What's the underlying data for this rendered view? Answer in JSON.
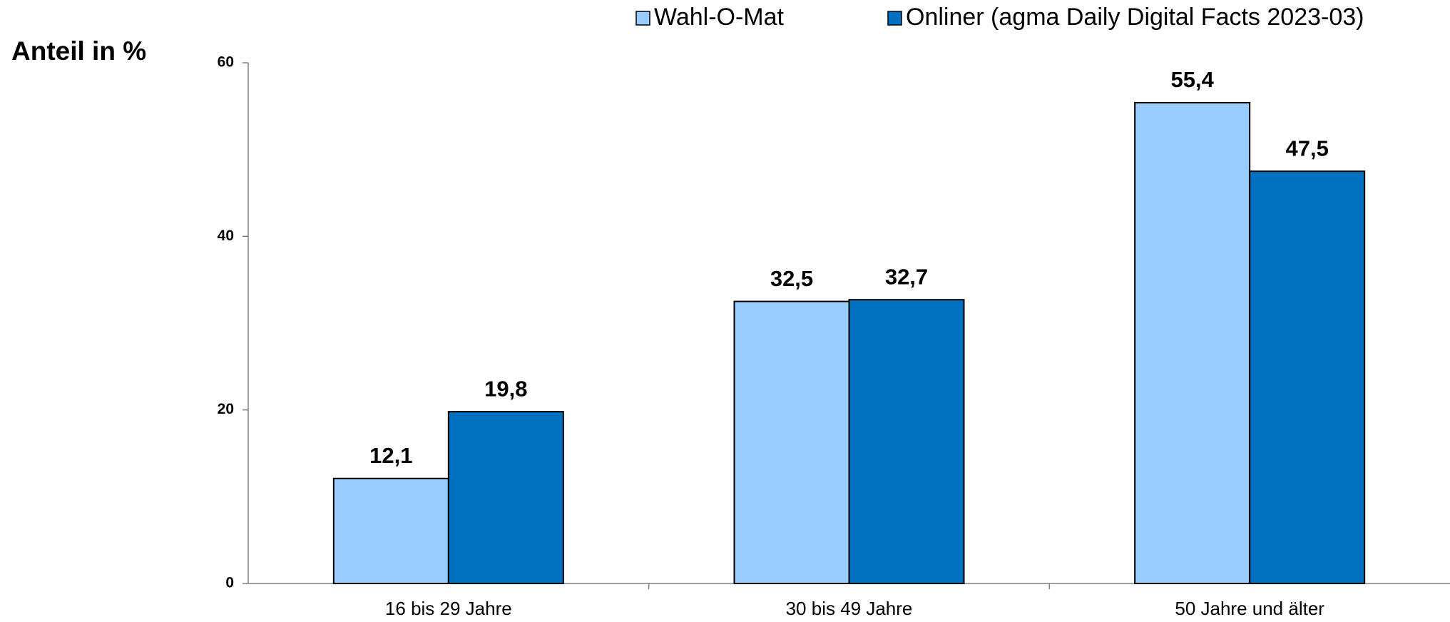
{
  "chart_data": {
    "type": "bar",
    "y_axis_label": "Anteil in %",
    "categories": [
      "16 bis 29 Jahre",
      "30 bis 49 Jahre",
      "50 Jahre und älter"
    ],
    "series": [
      {
        "name": "Wahl-O-Mat",
        "color": "#99ccff",
        "values": [
          12.1,
          32.5,
          55.4
        ],
        "value_labels": [
          "12,1",
          "32,5",
          "55,4"
        ]
      },
      {
        "name": "Onliner (agma Daily Digital Facts 2023-03)",
        "color": "#0070c0",
        "values": [
          19.8,
          32.7,
          47.5
        ],
        "value_labels": [
          "19,8",
          "32,7",
          "47,5"
        ]
      }
    ],
    "ylim": [
      0,
      60
    ],
    "yticks": [
      0,
      20,
      40,
      60
    ],
    "grid": false,
    "legend": "top"
  }
}
